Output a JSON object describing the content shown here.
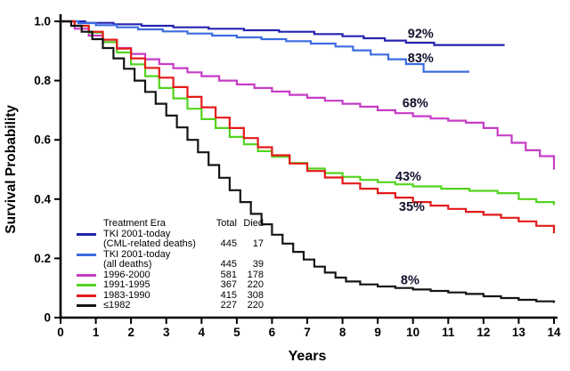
{
  "chart_data": {
    "type": "line",
    "subtype": "kaplan-meier-step",
    "title": "",
    "xlabel": "Years",
    "ylabel": "Survival Probability",
    "xlim": [
      0,
      14
    ],
    "ylim": [
      0,
      1.0
    ],
    "xticks": [
      0,
      1,
      2,
      3,
      4,
      5,
      6,
      7,
      8,
      9,
      10,
      11,
      12,
      13,
      14
    ],
    "yticks": [
      0,
      0.2,
      0.4,
      0.6,
      0.8,
      1.0
    ],
    "ytick_labels": [
      "0",
      "0.2",
      "0.4",
      "0.6",
      "0.8",
      "1.0"
    ],
    "grid": false,
    "axis_color": "#000000",
    "label_color": "#10102c",
    "legend_position": "lower-left",
    "curve_style": "step-after",
    "series": [
      {
        "name": "TKI 2001-today (CML-related deaths)",
        "slug": "tki-cml-related",
        "color": "#2323b0",
        "total": 445,
        "died": 17,
        "final_percent": "92%",
        "x": [
          0,
          0.7,
          1.5,
          2.3,
          3.2,
          4.2,
          5.2,
          6.2,
          7.2,
          8.0,
          8.6,
          9.2,
          9.8,
          10.6,
          12.6
        ],
        "y": [
          1.0,
          0.995,
          0.99,
          0.985,
          0.98,
          0.975,
          0.97,
          0.965,
          0.957,
          0.95,
          0.943,
          0.935,
          0.928,
          0.92,
          0.92
        ]
      },
      {
        "name": "TKI 2001-today (all deaths)",
        "slug": "tki-all-deaths",
        "color": "#3b6ce0",
        "total": 445,
        "died": 39,
        "final_percent": "83%",
        "x": [
          0,
          0.5,
          1.0,
          1.6,
          2.2,
          2.9,
          3.6,
          4.3,
          5.0,
          5.7,
          6.4,
          7.1,
          7.8,
          8.3,
          8.8,
          9.3,
          9.8,
          10.3,
          11.6
        ],
        "y": [
          1.0,
          0.994,
          0.987,
          0.98,
          0.973,
          0.966,
          0.959,
          0.952,
          0.946,
          0.94,
          0.933,
          0.925,
          0.915,
          0.902,
          0.888,
          0.872,
          0.856,
          0.83,
          0.83
        ]
      },
      {
        "name": "1996-2000",
        "slug": "1996-2000",
        "color": "#c63cc6",
        "total": 581,
        "died": 178,
        "final_percent": "68%",
        "x": [
          0,
          0.4,
          0.8,
          1.2,
          1.6,
          2.0,
          2.4,
          2.8,
          3.2,
          3.6,
          4.0,
          4.5,
          5.0,
          5.5,
          6.0,
          6.5,
          7.0,
          7.5,
          8.0,
          8.5,
          9.0,
          9.5,
          10.0,
          10.5,
          11.0,
          11.5,
          12.0,
          12.4,
          12.8,
          13.2,
          13.6,
          14.0
        ],
        "y": [
          1.0,
          0.975,
          0.952,
          0.93,
          0.91,
          0.89,
          0.872,
          0.856,
          0.842,
          0.828,
          0.815,
          0.8,
          0.787,
          0.775,
          0.763,
          0.752,
          0.742,
          0.732,
          0.722,
          0.712,
          0.7,
          0.69,
          0.68,
          0.672,
          0.665,
          0.658,
          0.64,
          0.615,
          0.59,
          0.565,
          0.545,
          0.5
        ]
      },
      {
        "name": "1991-1995",
        "slug": "1991-1995",
        "color": "#53d41e",
        "total": 367,
        "died": 220,
        "final_percent": "43%",
        "x": [
          0,
          0.4,
          0.8,
          1.2,
          1.6,
          2.0,
          2.4,
          2.8,
          3.2,
          3.6,
          4.0,
          4.4,
          4.8,
          5.2,
          5.6,
          6.0,
          6.5,
          7.0,
          7.5,
          8.0,
          8.5,
          9.0,
          9.5,
          10.0,
          10.8,
          11.6,
          12.4,
          13.0,
          13.5,
          14.0
        ],
        "y": [
          1.0,
          0.985,
          0.962,
          0.93,
          0.895,
          0.855,
          0.815,
          0.775,
          0.74,
          0.705,
          0.67,
          0.64,
          0.61,
          0.585,
          0.562,
          0.543,
          0.522,
          0.503,
          0.488,
          0.475,
          0.465,
          0.457,
          0.45,
          0.443,
          0.435,
          0.428,
          0.42,
          0.4,
          0.39,
          0.38
        ]
      },
      {
        "name": "1983-1990",
        "slug": "1983-1990",
        "color": "#e41a1a",
        "total": 415,
        "died": 308,
        "final_percent": "35%",
        "x": [
          0,
          0.4,
          0.8,
          1.2,
          1.6,
          2.0,
          2.4,
          2.8,
          3.2,
          3.6,
          4.0,
          4.4,
          4.8,
          5.2,
          5.6,
          6.0,
          6.5,
          7.0,
          7.5,
          8.0,
          8.5,
          9.0,
          9.5,
          10.0,
          10.5,
          11.0,
          11.5,
          12.0,
          12.5,
          13.0,
          13.5,
          14.0
        ],
        "y": [
          1.0,
          0.985,
          0.965,
          0.938,
          0.908,
          0.875,
          0.843,
          0.81,
          0.778,
          0.745,
          0.71,
          0.675,
          0.64,
          0.606,
          0.575,
          0.548,
          0.52,
          0.495,
          0.473,
          0.453,
          0.435,
          0.42,
          0.405,
          0.39,
          0.378,
          0.367,
          0.357,
          0.347,
          0.337,
          0.325,
          0.31,
          0.285
        ]
      },
      {
        "name": "≤1982",
        "slug": "pre-1982",
        "color": "#141414",
        "total": 227,
        "died": 220,
        "final_percent": "8%",
        "x": [
          0,
          0.3,
          0.6,
          0.9,
          1.2,
          1.5,
          1.8,
          2.1,
          2.4,
          2.7,
          3.0,
          3.3,
          3.6,
          3.9,
          4.2,
          4.5,
          4.8,
          5.1,
          5.4,
          5.7,
          6.0,
          6.3,
          6.6,
          6.9,
          7.2,
          7.5,
          7.8,
          8.1,
          8.5,
          9.0,
          9.5,
          10.0,
          10.5,
          11.0,
          11.5,
          12.0,
          12.5,
          13.0,
          13.5,
          14.0
        ],
        "y": [
          1.0,
          0.985,
          0.965,
          0.94,
          0.91,
          0.875,
          0.84,
          0.8,
          0.762,
          0.722,
          0.682,
          0.642,
          0.6,
          0.558,
          0.515,
          0.472,
          0.43,
          0.39,
          0.35,
          0.315,
          0.28,
          0.25,
          0.222,
          0.196,
          0.172,
          0.152,
          0.135,
          0.122,
          0.112,
          0.105,
          0.1,
          0.095,
          0.09,
          0.085,
          0.08,
          0.072,
          0.066,
          0.06,
          0.055,
          0.05
        ]
      }
    ],
    "annotations": [
      {
        "text": "92%",
        "x": 9.85,
        "y": 0.945
      },
      {
        "text": "83%",
        "x": 9.85,
        "y": 0.862
      },
      {
        "text": "68%",
        "x": 9.7,
        "y": 0.71
      },
      {
        "text": "43%",
        "x": 9.5,
        "y": 0.462
      },
      {
        "text": "35%",
        "x": 9.6,
        "y": 0.36
      },
      {
        "text": "8%",
        "x": 9.65,
        "y": 0.112
      }
    ]
  },
  "legend": {
    "header": {
      "era": "Treatment Era",
      "total": "Total",
      "died": "Died"
    },
    "rows": [
      {
        "color": "#2323b0",
        "line1": "TKI 2001-today",
        "line2": "(CML-related deaths)",
        "total": "445",
        "died": "17"
      },
      {
        "color": "#3b6ce0",
        "line1": "TKI 2001-today",
        "line2": "(all deaths)",
        "total": "445",
        "died": "39"
      },
      {
        "color": "#c63cc6",
        "line1": "1996-2000",
        "total": "581",
        "died": "178"
      },
      {
        "color": "#53d41e",
        "line1": "1991-1995",
        "total": "367",
        "died": "220"
      },
      {
        "color": "#e41a1a",
        "line1": "1983-1990",
        "total": "415",
        "died": "308"
      },
      {
        "color": "#141414",
        "line1": "≤1982",
        "total": "227",
        "died": "220"
      }
    ]
  }
}
